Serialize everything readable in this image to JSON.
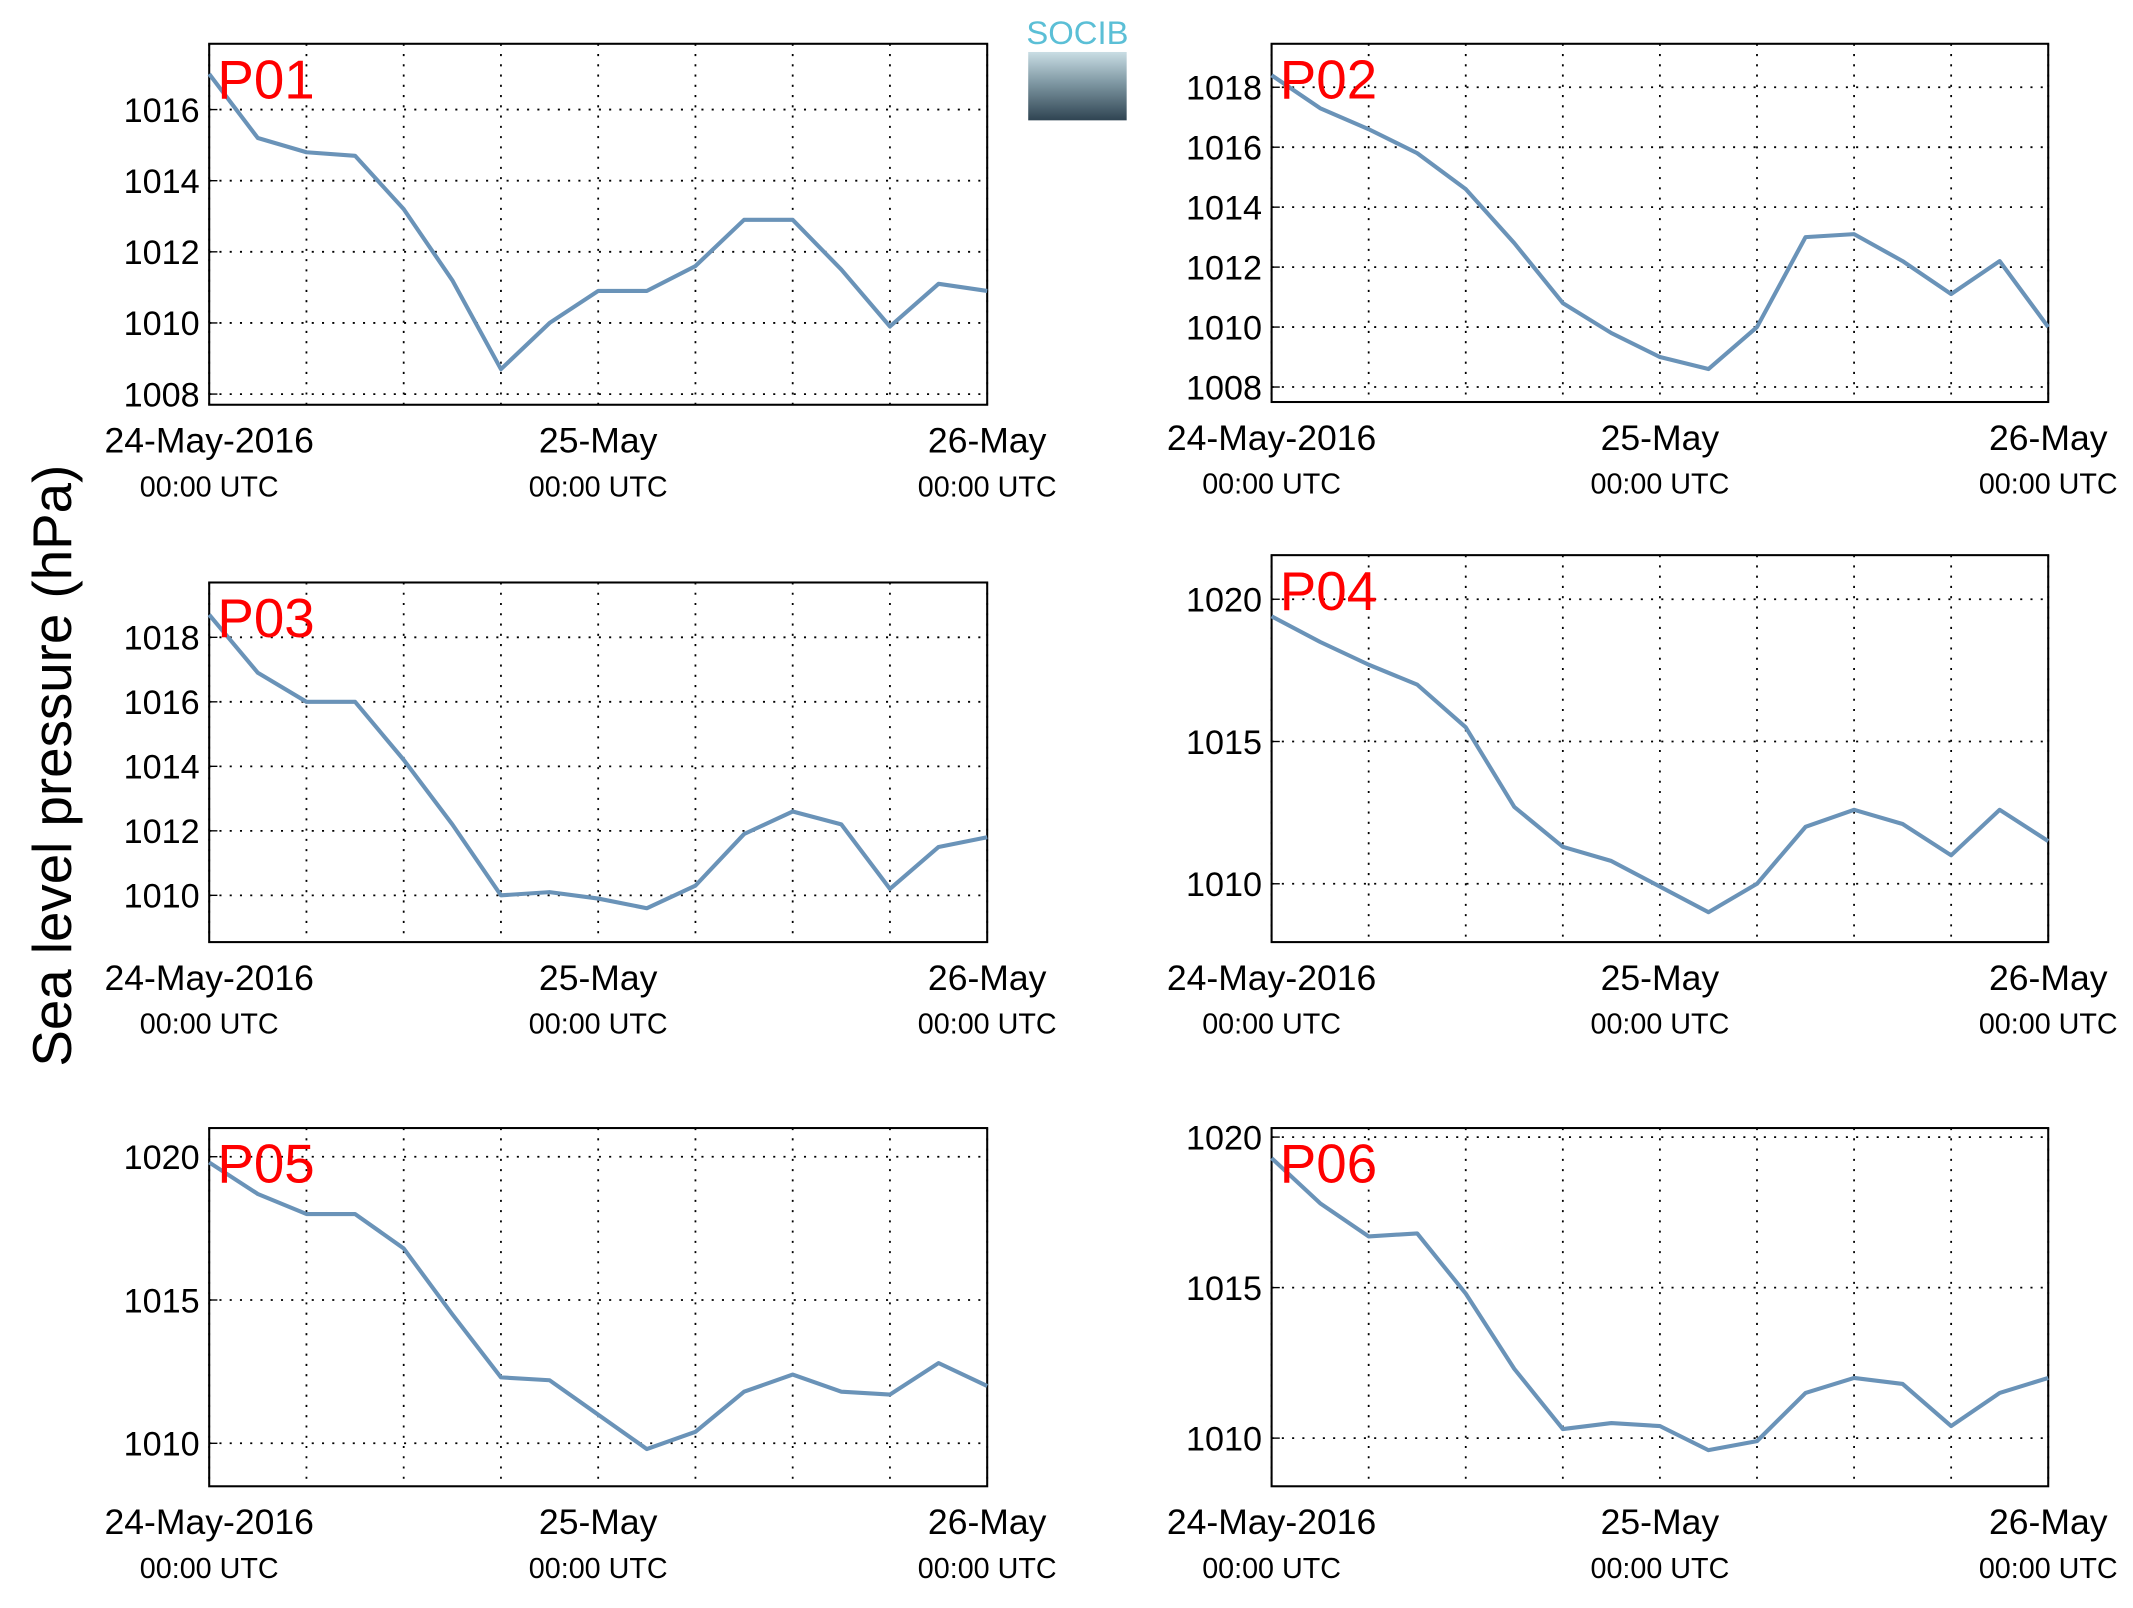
{
  "figure": {
    "ylabel": "Sea level pressure (hPa)",
    "logo": "SOCIB"
  },
  "chart_data": [
    {
      "type": "line",
      "title": "P01",
      "color": "#6a93b8",
      "grid": true,
      "x": [
        "2016-05-24 00:00",
        "2016-05-24 03:00",
        "2016-05-24 06:00",
        "2016-05-24 09:00",
        "2016-05-24 12:00",
        "2016-05-24 15:00",
        "2016-05-24 18:00",
        "2016-05-24 21:00",
        "2016-05-25 00:00",
        "2016-05-25 03:00",
        "2016-05-25 06:00",
        "2016-05-25 09:00",
        "2016-05-25 12:00",
        "2016-05-25 15:00",
        "2016-05-25 18:00",
        "2016-05-25 21:00",
        "2016-05-26 00:00"
      ],
      "values": [
        1017.0,
        1015.2,
        1014.8,
        1014.7,
        1013.2,
        1011.2,
        1008.7,
        1010.0,
        1010.9,
        1010.9,
        1011.6,
        1012.9,
        1012.9,
        1011.5,
        1009.9,
        1011.1,
        1010.9
      ],
      "xlim": [
        "2016-05-24 00:00",
        "2016-05-26 00:00"
      ],
      "xticks": [
        {
          "value": "2016-05-24 00:00",
          "label": "24-May-2016",
          "sublabel": "00:00 UTC"
        },
        {
          "value": "2016-05-25 00:00",
          "label": "25-May",
          "sublabel": "00:00 UTC"
        },
        {
          "value": "2016-05-26 00:00",
          "label": "26-May",
          "sublabel": "00:00 UTC"
        }
      ],
      "xminor": [
        "2016-05-24 06:00",
        "2016-05-24 12:00",
        "2016-05-24 18:00",
        "2016-05-25 06:00",
        "2016-05-25 12:00",
        "2016-05-25 18:00"
      ],
      "ylim": [
        1007.7,
        1017.85
      ],
      "yticks": [
        1008,
        1010,
        1012,
        1014,
        1016
      ]
    },
    {
      "type": "line",
      "title": "P02",
      "color": "#6a93b8",
      "grid": true,
      "x": [
        "2016-05-24 00:00",
        "2016-05-24 03:00",
        "2016-05-24 06:00",
        "2016-05-24 09:00",
        "2016-05-24 12:00",
        "2016-05-24 15:00",
        "2016-05-24 18:00",
        "2016-05-24 21:00",
        "2016-05-25 00:00",
        "2016-05-25 03:00",
        "2016-05-25 06:00",
        "2016-05-25 09:00",
        "2016-05-25 12:00",
        "2016-05-25 15:00",
        "2016-05-25 18:00",
        "2016-05-25 21:00",
        "2016-05-26 00:00"
      ],
      "values": [
        1018.4,
        1017.3,
        1016.6,
        1015.8,
        1014.6,
        1012.8,
        1010.8,
        1009.8,
        1009.0,
        1008.6,
        1010.0,
        1013.0,
        1013.1,
        1012.2,
        1011.1,
        1012.2,
        1010.0
      ],
      "xlim": [
        "2016-05-24 00:00",
        "2016-05-26 00:00"
      ],
      "xticks": [
        {
          "value": "2016-05-24 00:00",
          "label": "24-May-2016",
          "sublabel": "00:00 UTC"
        },
        {
          "value": "2016-05-25 00:00",
          "label": "25-May",
          "sublabel": "00:00 UTC"
        },
        {
          "value": "2016-05-26 00:00",
          "label": "26-May",
          "sublabel": "00:00 UTC"
        }
      ],
      "xminor": [
        "2016-05-24 06:00",
        "2016-05-24 12:00",
        "2016-05-24 18:00",
        "2016-05-25 06:00",
        "2016-05-25 12:00",
        "2016-05-25 18:00"
      ],
      "ylim": [
        1007.5,
        1019.45
      ],
      "yticks": [
        1008,
        1010,
        1012,
        1014,
        1016,
        1018
      ]
    },
    {
      "type": "line",
      "title": "P03",
      "color": "#6a93b8",
      "grid": true,
      "x": [
        "2016-05-24 00:00",
        "2016-05-24 03:00",
        "2016-05-24 06:00",
        "2016-05-24 09:00",
        "2016-05-24 12:00",
        "2016-05-24 15:00",
        "2016-05-24 18:00",
        "2016-05-24 21:00",
        "2016-05-25 00:00",
        "2016-05-25 03:00",
        "2016-05-25 06:00",
        "2016-05-25 09:00",
        "2016-05-25 12:00",
        "2016-05-25 15:00",
        "2016-05-25 18:00",
        "2016-05-25 21:00",
        "2016-05-26 00:00"
      ],
      "values": [
        1018.7,
        1016.9,
        1016.0,
        1016.0,
        1014.2,
        1012.2,
        1010.0,
        1010.1,
        1009.9,
        1009.6,
        1010.3,
        1011.9,
        1012.6,
        1012.2,
        1010.2,
        1011.5,
        1011.8
      ],
      "xlim": [
        "2016-05-24 00:00",
        "2016-05-26 00:00"
      ],
      "xticks": [
        {
          "value": "2016-05-24 00:00",
          "label": "24-May-2016",
          "sublabel": "00:00 UTC"
        },
        {
          "value": "2016-05-25 00:00",
          "label": "25-May",
          "sublabel": "00:00 UTC"
        },
        {
          "value": "2016-05-26 00:00",
          "label": "26-May",
          "sublabel": "00:00 UTC"
        }
      ],
      "xminor": [
        "2016-05-24 06:00",
        "2016-05-24 12:00",
        "2016-05-24 18:00",
        "2016-05-25 06:00",
        "2016-05-25 12:00",
        "2016-05-25 18:00"
      ],
      "ylim": [
        1008.55,
        1019.7
      ],
      "yticks": [
        1010,
        1012,
        1014,
        1016,
        1018
      ]
    },
    {
      "type": "line",
      "title": "P04",
      "color": "#6a93b8",
      "grid": true,
      "x": [
        "2016-05-24 00:00",
        "2016-05-24 03:00",
        "2016-05-24 06:00",
        "2016-05-24 09:00",
        "2016-05-24 12:00",
        "2016-05-24 15:00",
        "2016-05-24 18:00",
        "2016-05-24 21:00",
        "2016-05-25 00:00",
        "2016-05-25 03:00",
        "2016-05-25 06:00",
        "2016-05-25 09:00",
        "2016-05-25 12:00",
        "2016-05-25 15:00",
        "2016-05-25 18:00",
        "2016-05-25 21:00",
        "2016-05-26 00:00"
      ],
      "values": [
        1019.4,
        1018.5,
        1017.7,
        1017.0,
        1015.5,
        1012.7,
        1011.3,
        1010.8,
        1009.9,
        1009.0,
        1010.0,
        1012.0,
        1012.6,
        1012.1,
        1011.0,
        1012.6,
        1011.5
      ],
      "xlim": [
        "2016-05-24 00:00",
        "2016-05-26 00:00"
      ],
      "xticks": [
        {
          "value": "2016-05-24 00:00",
          "label": "24-May-2016",
          "sublabel": "00:00 UTC"
        },
        {
          "value": "2016-05-25 00:00",
          "label": "25-May",
          "sublabel": "00:00 UTC"
        },
        {
          "value": "2016-05-26 00:00",
          "label": "26-May",
          "sublabel": "00:00 UTC"
        }
      ],
      "xminor": [
        "2016-05-24 06:00",
        "2016-05-24 12:00",
        "2016-05-24 18:00",
        "2016-05-25 06:00",
        "2016-05-25 12:00",
        "2016-05-25 18:00"
      ],
      "ylim": [
        1007.95,
        1021.55
      ],
      "yticks": [
        1010,
        1015,
        1020
      ]
    },
    {
      "type": "line",
      "title": "P05",
      "color": "#6a93b8",
      "grid": true,
      "x": [
        "2016-05-24 00:00",
        "2016-05-24 03:00",
        "2016-05-24 06:00",
        "2016-05-24 09:00",
        "2016-05-24 12:00",
        "2016-05-24 15:00",
        "2016-05-24 18:00",
        "2016-05-24 21:00",
        "2016-05-25 00:00",
        "2016-05-25 03:00",
        "2016-05-25 06:00",
        "2016-05-25 09:00",
        "2016-05-25 12:00",
        "2016-05-25 15:00",
        "2016-05-25 18:00",
        "2016-05-25 21:00",
        "2016-05-26 00:00"
      ],
      "values": [
        1019.8,
        1018.7,
        1018.0,
        1018.0,
        1016.8,
        1014.5,
        1012.3,
        1012.2,
        1011.0,
        1009.8,
        1010.4,
        1011.8,
        1012.4,
        1011.8,
        1011.7,
        1012.8,
        1012.0
      ],
      "xlim": [
        "2016-05-24 00:00",
        "2016-05-26 00:00"
      ],
      "xticks": [
        {
          "value": "2016-05-24 00:00",
          "label": "24-May-2016",
          "sublabel": "00:00 UTC"
        },
        {
          "value": "2016-05-25 00:00",
          "label": "25-May",
          "sublabel": "00:00 UTC"
        },
        {
          "value": "2016-05-26 00:00",
          "label": "26-May",
          "sublabel": "00:00 UTC"
        }
      ],
      "xminor": [
        "2016-05-24 06:00",
        "2016-05-24 12:00",
        "2016-05-24 18:00",
        "2016-05-25 06:00",
        "2016-05-25 12:00",
        "2016-05-25 18:00"
      ],
      "ylim": [
        1008.5,
        1021
      ],
      "yticks": [
        1010,
        1015,
        1020
      ]
    },
    {
      "type": "line",
      "title": "P06",
      "color": "#6a93b8",
      "grid": true,
      "x": [
        "2016-05-24 00:00",
        "2016-05-24 03:00",
        "2016-05-24 06:00",
        "2016-05-24 09:00",
        "2016-05-24 12:00",
        "2016-05-24 15:00",
        "2016-05-24 18:00",
        "2016-05-24 21:00",
        "2016-05-25 00:00",
        "2016-05-25 03:00",
        "2016-05-25 06:00",
        "2016-05-25 09:00",
        "2016-05-25 12:00",
        "2016-05-25 15:00",
        "2016-05-25 18:00",
        "2016-05-25 21:00",
        "2016-05-26 00:00"
      ],
      "values": [
        1019.3,
        1017.8,
        1016.7,
        1016.8,
        1014.8,
        1012.3,
        1010.3,
        1010.5,
        1010.4,
        1009.6,
        1009.9,
        1011.5,
        1012.0,
        1011.8,
        1010.4,
        1011.5,
        1012.0
      ],
      "xlim": [
        "2016-05-24 00:00",
        "2016-05-26 00:00"
      ],
      "xticks": [
        {
          "value": "2016-05-24 00:00",
          "label": "24-May-2016",
          "sublabel": "00:00 UTC"
        },
        {
          "value": "2016-05-25 00:00",
          "label": "25-May",
          "sublabel": "00:00 UTC"
        },
        {
          "value": "2016-05-26 00:00",
          "label": "26-May",
          "sublabel": "00:00 UTC"
        }
      ],
      "xminor": [
        "2016-05-24 06:00",
        "2016-05-24 12:00",
        "2016-05-24 18:00",
        "2016-05-25 06:00",
        "2016-05-25 12:00",
        "2016-05-25 18:00"
      ],
      "ylim": [
        1008.4,
        1020.3
      ],
      "yticks": [
        1010,
        1015,
        1020
      ]
    }
  ]
}
